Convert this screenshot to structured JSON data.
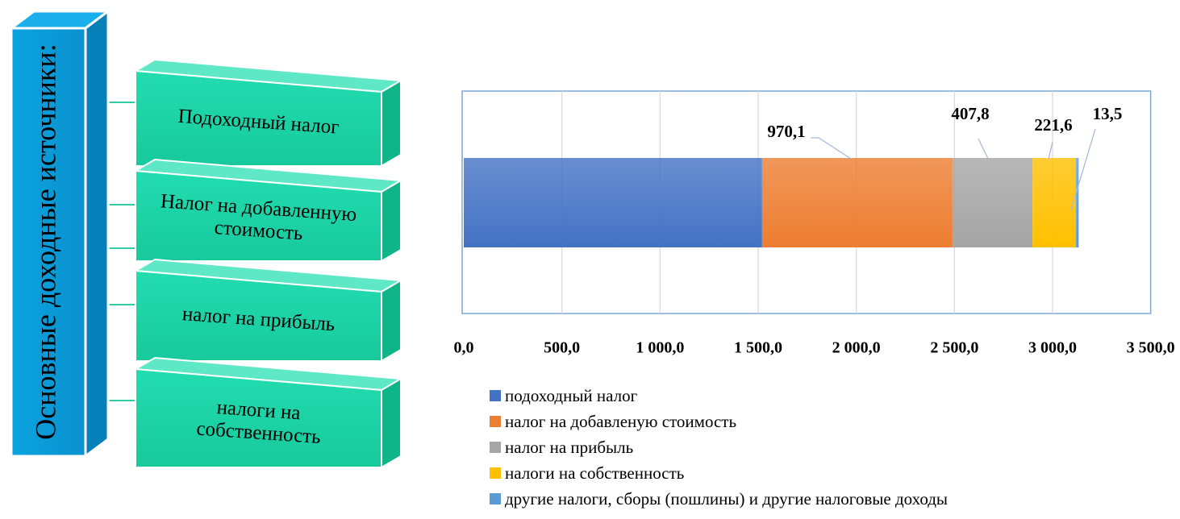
{
  "diagram": {
    "title": "Основные доходные источники:",
    "items": [
      {
        "label_lines": [
          "Подоходный налог"
        ]
      },
      {
        "label_lines": [
          "Налог на добавленную",
          "стоимость"
        ]
      },
      {
        "label_lines": [
          "налог на прибыль"
        ]
      },
      {
        "label_lines": [
          "налоги на",
          "собственность"
        ]
      }
    ],
    "colors": {
      "pillar": "#0B9BD8",
      "box": "#1FD8A9"
    }
  },
  "chart_data": {
    "type": "bar",
    "orientation": "horizontal",
    "stacked": true,
    "title": "",
    "xlabel": "",
    "ylabel": "",
    "xlim": [
      0,
      3500
    ],
    "xticks": [
      "0,0",
      "500,0",
      "1 000,0",
      "1 500,0",
      "2 000,0",
      "2 500,0",
      "3 000,0",
      "3 500,0"
    ],
    "grid": true,
    "legend_position": "bottom",
    "series": [
      {
        "name": "подоходный налог",
        "value": 1520,
        "color": "#4472C4",
        "data_label": ""
      },
      {
        "name": "налог на добавленую стоимость",
        "value": 970.1,
        "color": "#ED7D31",
        "data_label": "970,1"
      },
      {
        "name": "налог на прибыль",
        "value": 407.8,
        "color": "#A5A5A5",
        "data_label": "407,8"
      },
      {
        "name": "налоги на собственность",
        "value": 221.6,
        "color": "#FFC000",
        "data_label": "221,6"
      },
      {
        "name": "другие налоги, сборы (пошлины) и другие налоговые доходы",
        "value": 13.5,
        "color": "#5B9BD5",
        "data_label": "13,5"
      }
    ]
  }
}
